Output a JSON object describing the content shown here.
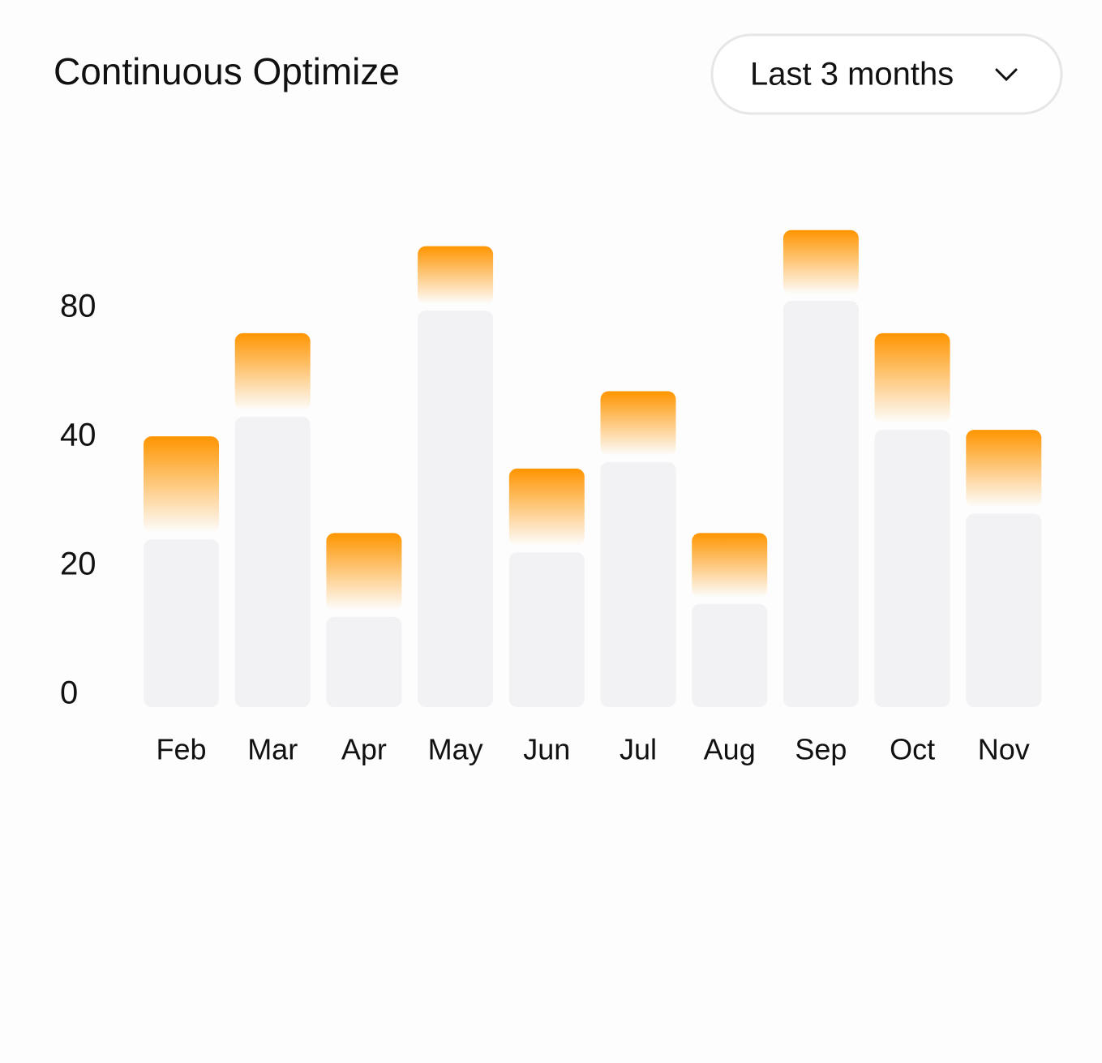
{
  "chart_data": {
    "type": "stacked-bar",
    "title": "Continuous Optimize",
    "categories": [
      "Feb",
      "Mar",
      "Apr",
      "May",
      "Jun",
      "Jul",
      "Aug",
      "Sep",
      "Oct",
      "Nov"
    ],
    "series": [
      {
        "color": "#f2f1f3",
        "values": [
          26,
          50,
          14,
          83,
          24,
          38,
          16,
          86,
          46,
          30
        ]
      },
      {
        "color": "#ff9500",
        "values": [
          18,
          26,
          13,
          20,
          13,
          20,
          11,
          22,
          30,
          16
        ]
      }
    ],
    "yticks": [
      0,
      20,
      40,
      80
    ]
  },
  "controls": {
    "period": "Last 3 months"
  }
}
